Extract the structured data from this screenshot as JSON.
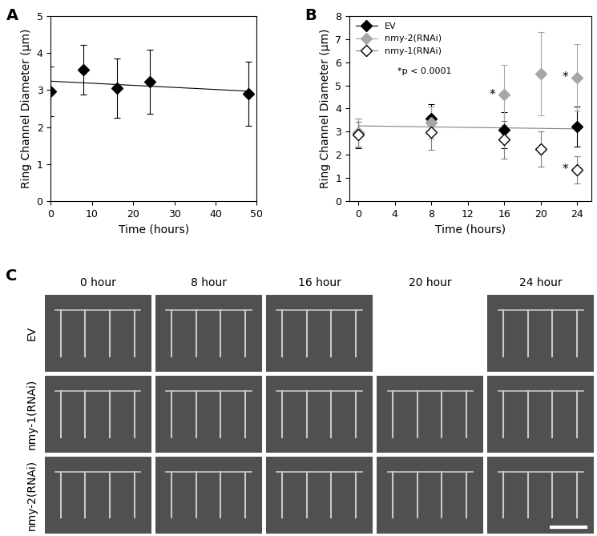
{
  "chart_data": [
    {
      "panel": "A",
      "type": "scatter",
      "x_label": "Time (hours)",
      "y_label": "Ring Channel Diameter (μm)",
      "xlim": [
        0,
        50
      ],
      "xticks": [
        0,
        10,
        20,
        30,
        40,
        50
      ],
      "ylim": [
        0,
        5
      ],
      "yticks": [
        0,
        1,
        2,
        3,
        4,
        5
      ],
      "series": [
        {
          "type": "scatter",
          "color": "#000000",
          "marker": "diamond",
          "x": [
            0,
            8,
            16,
            24,
            48
          ],
          "values": [
            2.97,
            3.55,
            3.05,
            3.22,
            2.9
          ],
          "error": [
            0.67,
            0.67,
            0.8,
            0.87,
            0.87
          ]
        },
        {
          "type": "line",
          "color": "#000000",
          "line_style": "solid",
          "x": [
            0,
            48
          ],
          "values": [
            3.24,
            2.97
          ]
        }
      ]
    },
    {
      "panel": "B",
      "type": "scatter",
      "x_label": "Time (hours)",
      "y_label": "Ring Channel Diameter (μm)",
      "xlim": [
        -1,
        25.5
      ],
      "xticks": [
        0,
        4,
        8,
        12,
        16,
        20,
        24
      ],
      "ylim": [
        0,
        8
      ],
      "yticks": [
        0,
        1,
        2,
        3,
        4,
        5,
        6,
        7,
        8
      ],
      "legend": "upper left",
      "note": "*p < 0.0001",
      "series": [
        {
          "name": "EV",
          "type": "scatter",
          "color": "#000000",
          "marker": "diamond",
          "x": [
            0,
            8,
            16,
            24
          ],
          "values": [
            2.93,
            3.55,
            3.07,
            3.22
          ],
          "error": [
            0.65,
            0.65,
            0.78,
            0.87
          ]
        },
        {
          "name": "nmy-2(RNAi)",
          "type": "scatter",
          "color": "#a6a6a6",
          "marker": "diamond",
          "x": [
            0,
            8,
            16,
            20,
            24
          ],
          "values": [
            2.95,
            3.4,
            4.6,
            5.5,
            5.35
          ],
          "error": [
            0.6,
            0.7,
            1.3,
            1.8,
            1.45
          ]
        },
        {
          "name": "nmy-1(RNAi)",
          "type": "scatter",
          "color": "#ffffff",
          "marker": "diamond",
          "x": [
            0,
            8,
            16,
            20,
            24
          ],
          "values": [
            2.88,
            2.97,
            2.65,
            2.25,
            1.35
          ],
          "error": [
            0.55,
            0.75,
            0.8,
            0.75,
            0.58
          ]
        },
        {
          "type": "line",
          "color": "#808080",
          "line_style": "solid",
          "x": [
            0,
            24
          ],
          "values": [
            3.25,
            3.12
          ]
        }
      ],
      "annotations": [
        {
          "text": "*",
          "x": 16,
          "y": 4.6
        },
        {
          "text": "*",
          "x": 24,
          "y": 5.35
        },
        {
          "text": "*",
          "x": 24,
          "y": 1.35
        }
      ]
    }
  ],
  "images": {
    "panel": "C",
    "columns": [
      "0 hour",
      "8 hour",
      "16 hour",
      "20 hour",
      "24 hour"
    ],
    "rows": [
      {
        "label": "EV",
        "present": [
          true,
          true,
          true,
          false,
          true
        ]
      },
      {
        "label": "nmy-1(RNAi)",
        "present": [
          true,
          true,
          true,
          true,
          true
        ]
      },
      {
        "label": "nmy-2(RNAi)",
        "present": [
          true,
          true,
          true,
          true,
          true
        ]
      }
    ]
  }
}
